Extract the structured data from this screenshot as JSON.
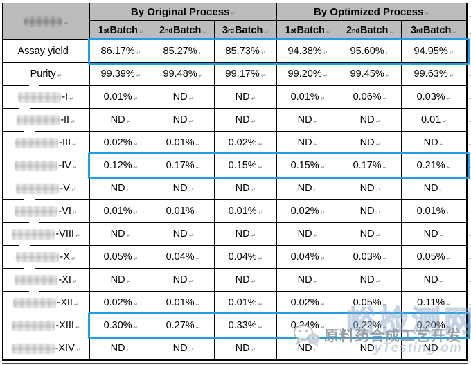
{
  "table": {
    "corner": {
      "redacted": true
    },
    "groups": [
      {
        "label": "By Original Process"
      },
      {
        "label": "By Optimized Process"
      }
    ],
    "batch_columns": [
      {
        "num": "1",
        "ord": "st",
        "word": "Batch"
      },
      {
        "num": "2",
        "ord": "nd",
        "word": "Batch"
      },
      {
        "num": "3",
        "ord": "rd",
        "word": "Batch"
      },
      {
        "num": "1",
        "ord": "st",
        "word": "Batch"
      },
      {
        "num": "2",
        "ord": "nd",
        "word": "Batch"
      },
      {
        "num": "3",
        "ord": "rd",
        "word": "Batch"
      }
    ],
    "rows": [
      {
        "label": "Assay yield",
        "redacted": false,
        "highlight": true,
        "values": [
          "86.17%",
          "85.27%",
          "85.73%",
          "94.38%",
          "95.60%",
          "94.95%"
        ]
      },
      {
        "label": "Purity",
        "redacted": false,
        "highlight": false,
        "values": [
          "99.39%",
          "99.48%",
          "99.17%",
          "99.20%",
          "99.45%",
          "99.63%"
        ]
      },
      {
        "suffix": "-I",
        "redacted": true,
        "highlight": false,
        "values": [
          "0.01%",
          "ND",
          "ND",
          "0.01%",
          "0.06%",
          "0.03%"
        ]
      },
      {
        "suffix": "-II",
        "redacted": true,
        "highlight": false,
        "values": [
          "ND",
          "ND",
          "ND",
          "ND",
          "ND",
          "0.01"
        ]
      },
      {
        "suffix": "-III",
        "redacted": true,
        "highlight": false,
        "values": [
          "0.02%",
          "0.01%",
          "0.02%",
          "ND",
          "ND",
          "ND"
        ]
      },
      {
        "suffix": "-IV",
        "redacted": true,
        "highlight": true,
        "values": [
          "0.12%",
          "0.17%",
          "0.15%",
          "0.15%",
          "0.17%",
          "0.21%"
        ]
      },
      {
        "suffix": "-V",
        "redacted": true,
        "highlight": false,
        "values": [
          "ND",
          "ND",
          "ND",
          "ND",
          "ND",
          "ND"
        ]
      },
      {
        "suffix": "-VI",
        "redacted": true,
        "highlight": false,
        "values": [
          "0.01%",
          "0.01%",
          "0.01%",
          "0.02%",
          "ND",
          "0.01%"
        ]
      },
      {
        "suffix": "-VIII",
        "redacted": true,
        "highlight": false,
        "values": [
          "ND",
          "ND",
          "ND",
          "ND",
          "ND",
          "ND"
        ]
      },
      {
        "suffix": "-X",
        "redacted": true,
        "highlight": false,
        "values": [
          "0.05%",
          "0.04%",
          "0.04%",
          "0.04%",
          "0.03%",
          "0.05%"
        ]
      },
      {
        "suffix": "-XI",
        "redacted": true,
        "highlight": false,
        "values": [
          "ND",
          "ND",
          "ND",
          "ND",
          "ND",
          "ND"
        ]
      },
      {
        "suffix": "-XII",
        "redacted": true,
        "highlight": false,
        "values": [
          "0.02%",
          "0.01%",
          "0.01%",
          "0.02%",
          "0.05%",
          "0.11%"
        ]
      },
      {
        "suffix": "-XIII",
        "redacted": true,
        "highlight": true,
        "values": [
          "0.30%",
          "0.27%",
          "0.33%",
          "0.24%",
          "0.22%",
          "0.20%"
        ]
      },
      {
        "suffix": "-XIV",
        "redacted": true,
        "highlight": false,
        "values": [
          "ND",
          "ND",
          "ND",
          "ND",
          "ND",
          "ND"
        ]
      }
    ]
  },
  "marks": {
    "cell_end": "↵"
  },
  "watermark": {
    "big": "峪检测网",
    "cn": "原料药合成工艺开发",
    "en": "yTesting om"
  },
  "colors": {
    "header_bg": "#bcbcbc",
    "highlight": "#1e9ee8",
    "border": "#000000"
  }
}
